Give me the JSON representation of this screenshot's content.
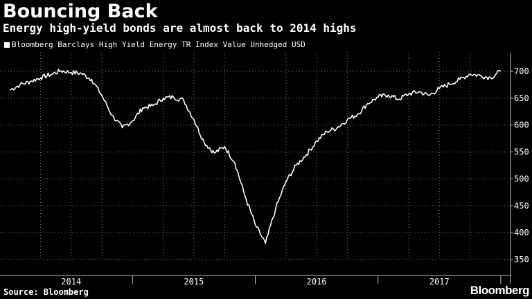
{
  "header": {
    "title": "Bouncing Back",
    "subtitle": "Energy high-yield bonds are almost back to 2014 highs"
  },
  "footer": {
    "source": "Source: Bloomberg",
    "brand": "Bloomberg"
  },
  "chart_data": {
    "type": "line",
    "title": "Bouncing Back",
    "subtitle": "Energy high-yield bonds are almost back to 2014 highs",
    "xlabel": "",
    "ylabel": "",
    "x_ticks": [
      "2014",
      "2015",
      "2016",
      "2017"
    ],
    "ylim": [
      350,
      700
    ],
    "y_ticks": [
      350,
      400,
      450,
      500,
      550,
      600,
      650,
      700
    ],
    "grid": true,
    "legend_position": "top-left",
    "series": [
      {
        "name": "Bloomberg Barclays High Yield Energy TR Index Value Unhedged USD",
        "color": "#ffffff",
        "points": [
          [
            "2014-01",
            665
          ],
          [
            "2014-02",
            675
          ],
          [
            "2014-03",
            681
          ],
          [
            "2014-04",
            688
          ],
          [
            "2014-05",
            694
          ],
          [
            "2014-06",
            701
          ],
          [
            "2014-07",
            698
          ],
          [
            "2014-08",
            696
          ],
          [
            "2014-09",
            685
          ],
          [
            "2014-10",
            655
          ],
          [
            "2014-11",
            618
          ],
          [
            "2014-12",
            595
          ],
          [
            "2015-01",
            608
          ],
          [
            "2015-02",
            632
          ],
          [
            "2015-03",
            636
          ],
          [
            "2015-04",
            650
          ],
          [
            "2015-05",
            652
          ],
          [
            "2015-06",
            646
          ],
          [
            "2015-07",
            610
          ],
          [
            "2015-08",
            568
          ],
          [
            "2015-09",
            548
          ],
          [
            "2015-10",
            560
          ],
          [
            "2015-11",
            530
          ],
          [
            "2015-12",
            468
          ],
          [
            "2016-01",
            415
          ],
          [
            "2016-02",
            380
          ],
          [
            "2016-03",
            445
          ],
          [
            "2016-04",
            495
          ],
          [
            "2016-05",
            525
          ],
          [
            "2016-06",
            545
          ],
          [
            "2016-07",
            570
          ],
          [
            "2016-08",
            588
          ],
          [
            "2016-09",
            595
          ],
          [
            "2016-10",
            610
          ],
          [
            "2016-11",
            620
          ],
          [
            "2016-12",
            640
          ],
          [
            "2017-01",
            652
          ],
          [
            "2017-02",
            656
          ],
          [
            "2017-03",
            648
          ],
          [
            "2017-04",
            658
          ],
          [
            "2017-05",
            662
          ],
          [
            "2017-06",
            655
          ],
          [
            "2017-07",
            668
          ],
          [
            "2017-08",
            676
          ],
          [
            "2017-09",
            685
          ],
          [
            "2017-10",
            695
          ],
          [
            "2017-11",
            692
          ],
          [
            "2017-12",
            688
          ],
          [
            "2018-01",
            700
          ]
        ]
      }
    ]
  }
}
